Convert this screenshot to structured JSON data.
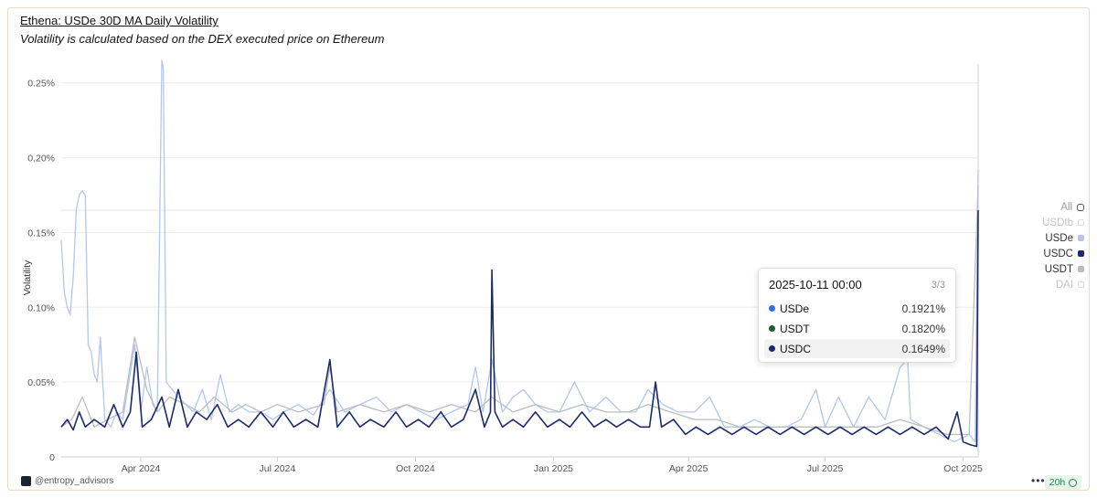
{
  "header": {
    "title": "Ethena: USDe 30D MA Daily Volatility",
    "subtitle": "Volatility is calculated based on the DEX executed price on Ethereum"
  },
  "legend": {
    "items": [
      {
        "label": "All",
        "state": "toggle",
        "color": "#555555"
      },
      {
        "label": "USDtb",
        "state": "off",
        "color": "#c8c8c8"
      },
      {
        "label": "USDe",
        "state": "on",
        "color": "#b3c6ef"
      },
      {
        "label": "USDC",
        "state": "on",
        "color": "#1a2a6c"
      },
      {
        "label": "USDT",
        "state": "on",
        "color": "#b9bdbf"
      },
      {
        "label": "DAI",
        "state": "off",
        "color": "#c8c8c8"
      }
    ]
  },
  "tooltip": {
    "date": "2025-10-11 00:00",
    "count": "3/3",
    "rows": [
      {
        "name": "USDe",
        "value": "0.1921%",
        "color": "#2f6fe0"
      },
      {
        "name": "USDT",
        "value": "0.1820%",
        "color": "#1f5a3b"
      },
      {
        "name": "USDC",
        "value": "0.1649%",
        "color": "#1a2a6c"
      }
    ]
  },
  "footer": {
    "brand": "@entropy_advisors",
    "more": "•••",
    "refresh": "20h"
  },
  "chart_data": {
    "type": "line",
    "title": "Ethena: USDe 30D MA Daily Volatility",
    "subtitle": "Volatility is calculated based on the DEX executed price on Ethereum",
    "ylabel": "Volatility",
    "xlabel": "",
    "x_range": [
      "2024-02-08",
      "2025-10-11"
    ],
    "ylim": [
      0,
      0.27
    ],
    "y_unit": "%",
    "y_ticks": [
      0,
      0.05,
      0.1,
      0.15,
      0.2,
      0.25
    ],
    "y_tick_labels": [
      "0",
      "0.05%",
      "0.10%",
      "0.15%",
      "0.20%",
      "0.25%"
    ],
    "x_ticks": [
      "2024-04-01",
      "2024-07-01",
      "2024-10-01",
      "2025-01-01",
      "2025-04-01",
      "2025-07-01",
      "2025-10-01"
    ],
    "x_tick_labels": [
      "Apr 2024",
      "Jul 2024",
      "Oct 2024",
      "Jan 2025",
      "Apr 2025",
      "Jul 2025",
      "Oct 2025"
    ],
    "grid": true,
    "legend_position": "right",
    "crosshair_date": "2025-10-11",
    "series": [
      {
        "name": "USDe",
        "color": "#b3c6ef",
        "points": [
          [
            "2024-02-08",
            0.145
          ],
          [
            "2024-02-10",
            0.11
          ],
          [
            "2024-02-12",
            0.1
          ],
          [
            "2024-02-14",
            0.095
          ],
          [
            "2024-02-16",
            0.12
          ],
          [
            "2024-02-18",
            0.165
          ],
          [
            "2024-02-20",
            0.175
          ],
          [
            "2024-02-22",
            0.178
          ],
          [
            "2024-02-24",
            0.175
          ],
          [
            "2024-02-26",
            0.075
          ],
          [
            "2024-02-28",
            0.07
          ],
          [
            "2024-03-01",
            0.055
          ],
          [
            "2024-03-03",
            0.05
          ],
          [
            "2024-03-05",
            0.08
          ],
          [
            "2024-03-08",
            0.025
          ],
          [
            "2024-03-12",
            0.02
          ],
          [
            "2024-03-16",
            0.03
          ],
          [
            "2024-03-20",
            0.025
          ],
          [
            "2024-03-24",
            0.05
          ],
          [
            "2024-03-28",
            0.075
          ],
          [
            "2024-04-01",
            0.03
          ],
          [
            "2024-04-05",
            0.06
          ],
          [
            "2024-04-09",
            0.035
          ],
          [
            "2024-04-12",
            0.03
          ],
          [
            "2024-04-15",
            0.265
          ],
          [
            "2024-04-16",
            0.26
          ],
          [
            "2024-04-18",
            0.05
          ],
          [
            "2024-04-22",
            0.045
          ],
          [
            "2024-04-26",
            0.04
          ],
          [
            "2024-05-01",
            0.035
          ],
          [
            "2024-05-06",
            0.03
          ],
          [
            "2024-05-12",
            0.045
          ],
          [
            "2024-05-18",
            0.025
          ],
          [
            "2024-05-24",
            0.055
          ],
          [
            "2024-05-30",
            0.03
          ],
          [
            "2024-06-05",
            0.035
          ],
          [
            "2024-06-12",
            0.03
          ],
          [
            "2024-06-20",
            0.03
          ],
          [
            "2024-06-28",
            0.025
          ],
          [
            "2024-07-05",
            0.03
          ],
          [
            "2024-07-15",
            0.035
          ],
          [
            "2024-07-25",
            0.028
          ],
          [
            "2024-08-05",
            0.045
          ],
          [
            "2024-08-15",
            0.03
          ],
          [
            "2024-08-25",
            0.035
          ],
          [
            "2024-09-05",
            0.04
          ],
          [
            "2024-09-15",
            0.03
          ],
          [
            "2024-09-25",
            0.035
          ],
          [
            "2024-10-05",
            0.03
          ],
          [
            "2024-10-15",
            0.025
          ],
          [
            "2024-10-25",
            0.03
          ],
          [
            "2024-11-05",
            0.035
          ],
          [
            "2024-11-10",
            0.06
          ],
          [
            "2024-11-15",
            0.03
          ],
          [
            "2024-11-21",
            0.065
          ],
          [
            "2024-11-28",
            0.03
          ],
          [
            "2024-12-05",
            0.04
          ],
          [
            "2024-12-12",
            0.045
          ],
          [
            "2024-12-20",
            0.035
          ],
          [
            "2024-12-28",
            0.03
          ],
          [
            "2025-01-05",
            0.03
          ],
          [
            "2025-01-15",
            0.05
          ],
          [
            "2025-01-25",
            0.03
          ],
          [
            "2025-02-05",
            0.04
          ],
          [
            "2025-02-15",
            0.03
          ],
          [
            "2025-02-25",
            0.03
          ],
          [
            "2025-03-05",
            0.045
          ],
          [
            "2025-03-15",
            0.035
          ],
          [
            "2025-03-25",
            0.03
          ],
          [
            "2025-04-05",
            0.03
          ],
          [
            "2025-04-15",
            0.04
          ],
          [
            "2025-04-25",
            0.02
          ],
          [
            "2025-05-05",
            0.02
          ],
          [
            "2025-05-15",
            0.025
          ],
          [
            "2025-05-25",
            0.02
          ],
          [
            "2025-06-05",
            0.02
          ],
          [
            "2025-06-15",
            0.025
          ],
          [
            "2025-06-25",
            0.045
          ],
          [
            "2025-07-01",
            0.02
          ],
          [
            "2025-07-10",
            0.04
          ],
          [
            "2025-07-20",
            0.02
          ],
          [
            "2025-07-30",
            0.04
          ],
          [
            "2025-08-10",
            0.025
          ],
          [
            "2025-08-20",
            0.06
          ],
          [
            "2025-08-25",
            0.065
          ],
          [
            "2025-08-27",
            0.025
          ],
          [
            "2025-09-05",
            0.02
          ],
          [
            "2025-09-15",
            0.015
          ],
          [
            "2025-09-25",
            0.01
          ],
          [
            "2025-10-05",
            0.015
          ],
          [
            "2025-10-09",
            0.01
          ],
          [
            "2025-10-11",
            0.1921
          ]
        ]
      },
      {
        "name": "USDT",
        "color": "#b9bdbf",
        "points": [
          [
            "2024-02-08",
            0.02
          ],
          [
            "2024-02-15",
            0.025
          ],
          [
            "2024-02-22",
            0.04
          ],
          [
            "2024-03-01",
            0.02
          ],
          [
            "2024-03-10",
            0.025
          ],
          [
            "2024-03-20",
            0.03
          ],
          [
            "2024-03-28",
            0.08
          ],
          [
            "2024-04-05",
            0.045
          ],
          [
            "2024-04-12",
            0.03
          ],
          [
            "2024-04-20",
            0.04
          ],
          [
            "2024-05-01",
            0.035
          ],
          [
            "2024-05-10",
            0.03
          ],
          [
            "2024-05-20",
            0.04
          ],
          [
            "2024-06-01",
            0.03
          ],
          [
            "2024-06-10",
            0.035
          ],
          [
            "2024-06-20",
            0.03
          ],
          [
            "2024-07-01",
            0.035
          ],
          [
            "2024-07-15",
            0.03
          ],
          [
            "2024-08-01",
            0.035
          ],
          [
            "2024-08-05",
            0.06
          ],
          [
            "2024-08-10",
            0.03
          ],
          [
            "2024-08-25",
            0.035
          ],
          [
            "2024-09-10",
            0.03
          ],
          [
            "2024-09-25",
            0.035
          ],
          [
            "2024-10-10",
            0.03
          ],
          [
            "2024-10-25",
            0.035
          ],
          [
            "2024-11-10",
            0.03
          ],
          [
            "2024-11-21",
            0.04
          ],
          [
            "2024-12-05",
            0.03
          ],
          [
            "2024-12-20",
            0.035
          ],
          [
            "2025-01-05",
            0.03
          ],
          [
            "2025-01-20",
            0.035
          ],
          [
            "2025-02-05",
            0.03
          ],
          [
            "2025-02-20",
            0.03
          ],
          [
            "2025-03-05",
            0.035
          ],
          [
            "2025-03-20",
            0.03
          ],
          [
            "2025-04-05",
            0.025
          ],
          [
            "2025-04-20",
            0.025
          ],
          [
            "2025-05-05",
            0.02
          ],
          [
            "2025-05-20",
            0.02
          ],
          [
            "2025-06-05",
            0.02
          ],
          [
            "2025-06-20",
            0.02
          ],
          [
            "2025-07-05",
            0.02
          ],
          [
            "2025-07-20",
            0.02
          ],
          [
            "2025-08-05",
            0.02
          ],
          [
            "2025-08-20",
            0.025
          ],
          [
            "2025-09-05",
            0.02
          ],
          [
            "2025-09-20",
            0.015
          ],
          [
            "2025-10-05",
            0.015
          ],
          [
            "2025-10-11",
            0.182
          ]
        ]
      },
      {
        "name": "USDC",
        "color": "#1a2a6c",
        "points": [
          [
            "2024-02-08",
            0.02
          ],
          [
            "2024-02-12",
            0.025
          ],
          [
            "2024-02-16",
            0.018
          ],
          [
            "2024-02-20",
            0.03
          ],
          [
            "2024-02-24",
            0.02
          ],
          [
            "2024-03-01",
            0.025
          ],
          [
            "2024-03-08",
            0.02
          ],
          [
            "2024-03-14",
            0.035
          ],
          [
            "2024-03-20",
            0.02
          ],
          [
            "2024-03-25",
            0.03
          ],
          [
            "2024-03-29",
            0.07
          ],
          [
            "2024-04-02",
            0.02
          ],
          [
            "2024-04-08",
            0.025
          ],
          [
            "2024-04-15",
            0.04
          ],
          [
            "2024-04-20",
            0.02
          ],
          [
            "2024-04-26",
            0.045
          ],
          [
            "2024-05-02",
            0.02
          ],
          [
            "2024-05-08",
            0.03
          ],
          [
            "2024-05-15",
            0.025
          ],
          [
            "2024-05-22",
            0.035
          ],
          [
            "2024-05-29",
            0.02
          ],
          [
            "2024-06-05",
            0.025
          ],
          [
            "2024-06-12",
            0.02
          ],
          [
            "2024-06-20",
            0.03
          ],
          [
            "2024-06-28",
            0.02
          ],
          [
            "2024-07-05",
            0.03
          ],
          [
            "2024-07-12",
            0.02
          ],
          [
            "2024-07-20",
            0.025
          ],
          [
            "2024-07-28",
            0.02
          ],
          [
            "2024-08-05",
            0.065
          ],
          [
            "2024-08-10",
            0.02
          ],
          [
            "2024-08-18",
            0.03
          ],
          [
            "2024-08-25",
            0.02
          ],
          [
            "2024-09-01",
            0.025
          ],
          [
            "2024-09-10",
            0.02
          ],
          [
            "2024-09-18",
            0.03
          ],
          [
            "2024-09-25",
            0.02
          ],
          [
            "2024-10-03",
            0.025
          ],
          [
            "2024-10-10",
            0.02
          ],
          [
            "2024-10-18",
            0.03
          ],
          [
            "2024-10-25",
            0.02
          ],
          [
            "2024-11-02",
            0.025
          ],
          [
            "2024-11-10",
            0.045
          ],
          [
            "2024-11-16",
            0.02
          ],
          [
            "2024-11-20",
            0.03
          ],
          [
            "2024-11-21",
            0.125
          ],
          [
            "2024-11-23",
            0.03
          ],
          [
            "2024-11-28",
            0.02
          ],
          [
            "2024-12-05",
            0.025
          ],
          [
            "2024-12-12",
            0.02
          ],
          [
            "2024-12-20",
            0.03
          ],
          [
            "2024-12-28",
            0.02
          ],
          [
            "2025-01-05",
            0.025
          ],
          [
            "2025-01-12",
            0.02
          ],
          [
            "2025-01-20",
            0.03
          ],
          [
            "2025-01-28",
            0.02
          ],
          [
            "2025-02-05",
            0.025
          ],
          [
            "2025-02-12",
            0.02
          ],
          [
            "2025-02-20",
            0.025
          ],
          [
            "2025-02-28",
            0.02
          ],
          [
            "2025-03-06",
            0.02
          ],
          [
            "2025-03-10",
            0.05
          ],
          [
            "2025-03-14",
            0.02
          ],
          [
            "2025-03-22",
            0.025
          ],
          [
            "2025-03-30",
            0.015
          ],
          [
            "2025-04-06",
            0.02
          ],
          [
            "2025-04-14",
            0.015
          ],
          [
            "2025-04-22",
            0.02
          ],
          [
            "2025-04-30",
            0.015
          ],
          [
            "2025-05-08",
            0.02
          ],
          [
            "2025-05-16",
            0.015
          ],
          [
            "2025-05-24",
            0.02
          ],
          [
            "2025-06-01",
            0.015
          ],
          [
            "2025-06-09",
            0.02
          ],
          [
            "2025-06-17",
            0.015
          ],
          [
            "2025-06-25",
            0.02
          ],
          [
            "2025-07-03",
            0.015
          ],
          [
            "2025-07-11",
            0.02
          ],
          [
            "2025-07-19",
            0.015
          ],
          [
            "2025-07-27",
            0.02
          ],
          [
            "2025-08-04",
            0.015
          ],
          [
            "2025-08-12",
            0.02
          ],
          [
            "2025-08-20",
            0.015
          ],
          [
            "2025-08-28",
            0.02
          ],
          [
            "2025-09-05",
            0.015
          ],
          [
            "2025-09-13",
            0.02
          ],
          [
            "2025-09-21",
            0.012
          ],
          [
            "2025-09-27",
            0.03
          ],
          [
            "2025-10-01",
            0.01
          ],
          [
            "2025-10-06",
            0.008
          ],
          [
            "2025-10-10",
            0.007
          ],
          [
            "2025-10-11",
            0.1649
          ]
        ]
      }
    ]
  }
}
